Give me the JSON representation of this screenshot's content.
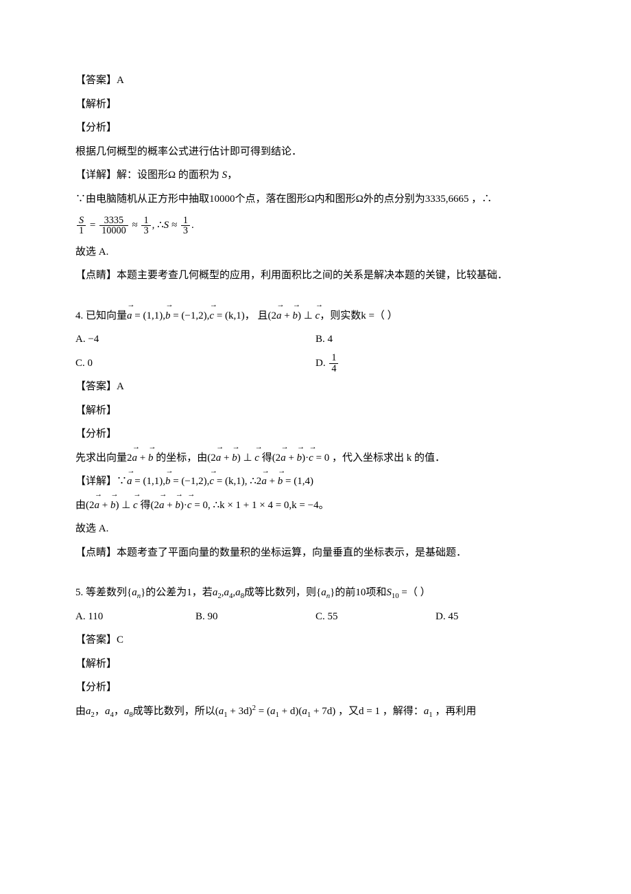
{
  "q3": {
    "answerLabel": "【答案】A",
    "jiexi": "【解析】",
    "fenxi": "【分析】",
    "fenxiText": "根据几何概型的概率公式进行估计即可得到结论．",
    "detailLabel": "【详解】解：设图形Ω 的面积为 ",
    "detailSVar": "S",
    "detailTail": "，",
    "body1a": "∵由电脑随机从正方形中抽取10000个点，落在图形Ω内和图形Ω外的点分别为3335,6665 ，∴",
    "eq": {
      "s": "S",
      "d1": "1",
      "n2": "3335",
      "d2": "10000",
      "n3": "1",
      "d3": "3",
      "mid": ", ∴",
      "sapprox": "S ≈",
      "n4": "1",
      "d4": "3",
      "end": "."
    },
    "so": "故选 A.",
    "dianjing": "【点睛】本题主要考查几何概型的应用，利用面积比之间的关系是解决本题的关键，比较基础．"
  },
  "q4": {
    "stemP1": "4. 已知向量",
    "a": "a",
    "aval": " = (1,1),",
    "b": "b",
    "bval": " = (−1,2),",
    "c": "c",
    "cval": " = (k,1)，  且(2",
    "plus": " + ",
    "perp": ") ⊥ ",
    "tail": "，则实数k =（  ）",
    "optA": "A.  −4",
    "optB": "B.  4",
    "optC": "C.  0",
    "optDlabel": "D. ",
    "optDnum": "1",
    "optDden": "4",
    "answerLabel": "【答案】A",
    "jiexi": "【解析】",
    "fenxi": "【分析】",
    "ana1a": "先求出向量2",
    "ana1b": " 的坐标，由(2",
    "ana1c": " 得(2",
    "ana1d": ")·",
    "ana1e": " = 0  ，代入坐标求出 k 的值．",
    "det1a": "【详解】∵",
    "det1a2": " = (1,1),",
    "det1b2": " = (−1,2),",
    "det1c2": " = (k,1),    ∴2",
    "det1end": " = (1,4)",
    "det2a": "由(2",
    "det2b": " 得(2",
    "det2c": ")·",
    "det2d": " = 0,    ∴k × 1 + 1 × 4 = 0,k = −4。",
    "so": "故选 A.",
    "dianjing": "【点睛】本题考查了平面向量的数量积的坐标运算，向量垂直的坐标表示，是基础题．"
  },
  "q5": {
    "stem1": "5. 等差数列{",
    "an": "a",
    "ansub": "n",
    "stem2": "}的公差为1，若",
    "a2": "a",
    "a2s": "2",
    "comma": ",",
    "a4": "a",
    "a4s": "4",
    "a8": "a",
    "a8s": "8",
    "stem3": "成等比数列，则{",
    "stem4": "}的前10项和",
    "S": "S",
    "S10": "10",
    "eqq": " =（  ）",
    "optA": "A.  110",
    "optB": "B.  90",
    "optC": "C.  55",
    "optD": "D.  45",
    "answerLabel": "【答案】C",
    "jiexi": "【解析】",
    "fenxi": "【分析】",
    "det_a": "由",
    "det_so": "成等比数列，所以(",
    "a1": "a",
    "a1s": "1",
    "poly1": " + 3d)",
    "sq": "2",
    "eqsym": " = (",
    "poly2": " + d)(",
    "poly3": " + 7d)  ，又d = 1 ，解得：",
    "tail": " ，再利用"
  }
}
